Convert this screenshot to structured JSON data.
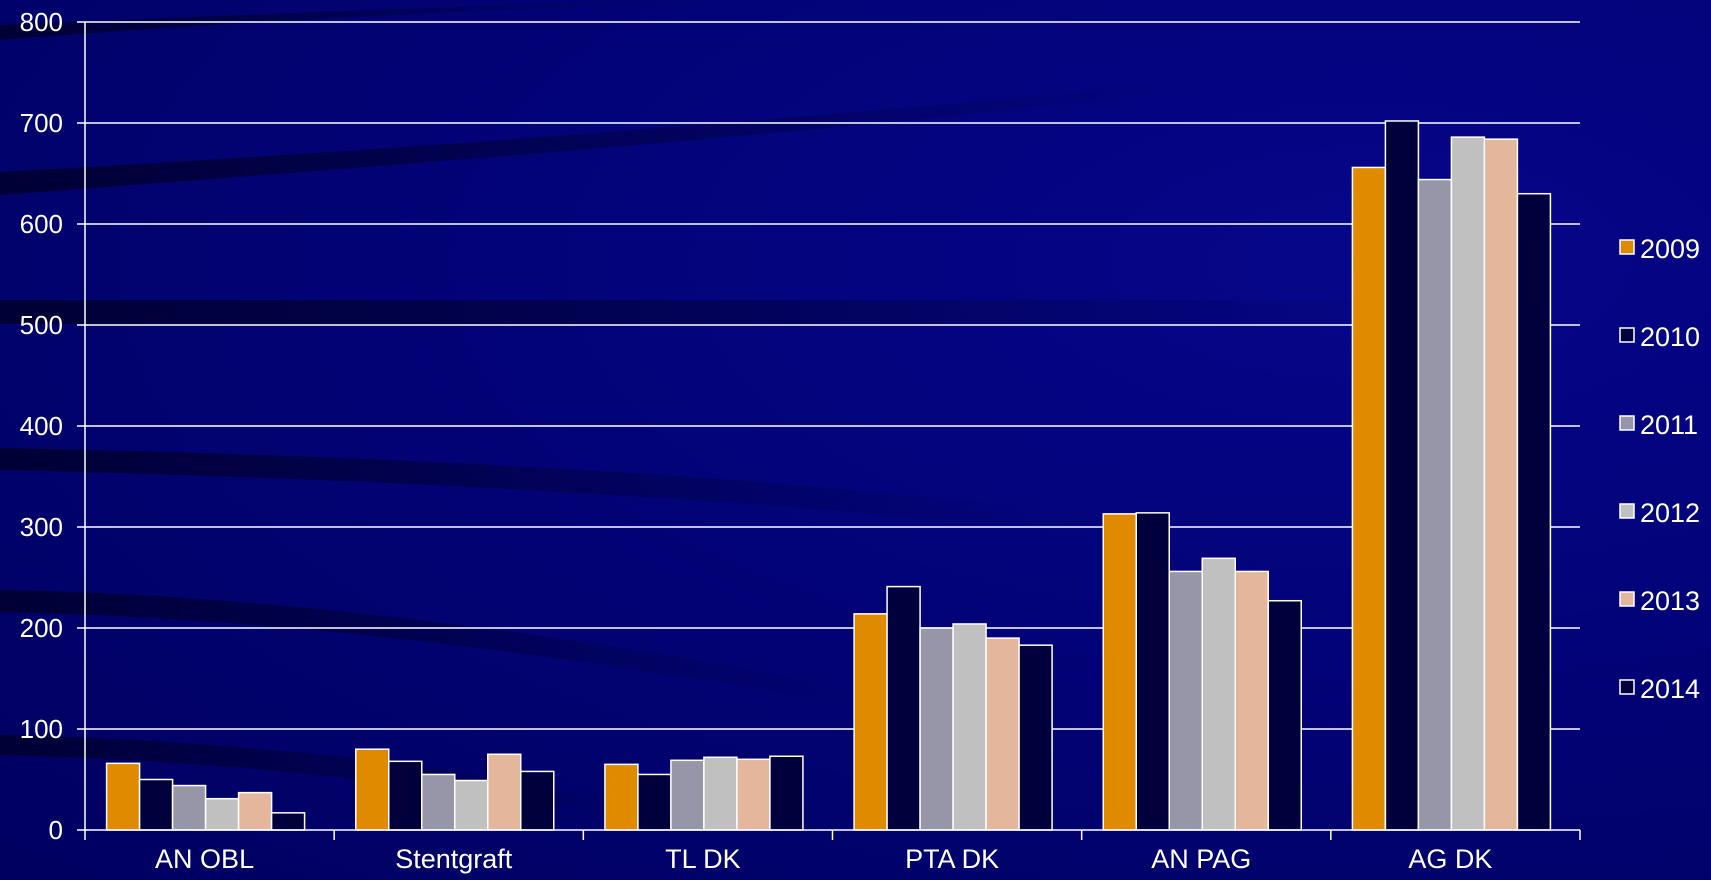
{
  "chart_data": {
    "type": "bar",
    "categories": [
      "AN OBL",
      "Stentgraft",
      "TL DK",
      "PTA DK",
      "AN PAG",
      "AG DK"
    ],
    "series": [
      {
        "name": "2009",
        "color": "#e08a00",
        "values": [
          66,
          80,
          65,
          214,
          313,
          656
        ]
      },
      {
        "name": "2010",
        "color": "#00003c",
        "values": [
          50,
          68,
          55,
          241,
          314,
          702
        ]
      },
      {
        "name": "2011",
        "color": "#9696a8",
        "values": [
          44,
          55,
          69,
          200,
          256,
          644
        ]
      },
      {
        "name": "2012",
        "color": "#c0c0c0",
        "values": [
          31,
          49,
          72,
          204,
          269,
          686
        ]
      },
      {
        "name": "2013",
        "color": "#e4b69c",
        "values": [
          37,
          75,
          70,
          190,
          256,
          684
        ]
      },
      {
        "name": "2014",
        "color": "#00003c",
        "values": [
          17,
          58,
          73,
          183,
          227,
          630
        ]
      }
    ],
    "ylim": [
      0,
      800
    ],
    "yticks": [
      "0",
      "100",
      "200",
      "300",
      "400",
      "500",
      "600",
      "700",
      "800"
    ],
    "ytick_values": [
      0,
      100,
      200,
      300,
      400,
      500,
      600,
      700,
      800
    ],
    "grid": true,
    "legend_position": "right",
    "title": "",
    "xlabel": "",
    "ylabel": ""
  }
}
